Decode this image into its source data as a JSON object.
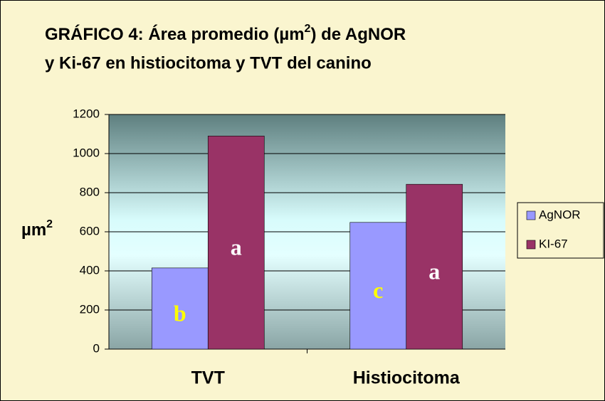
{
  "chart_data": {
    "type": "bar",
    "title": {
      "line1": [
        "GRÁFICO 4: Área promedio  (µm",
        "2",
        ") de AgNOR"
      ],
      "line2": "y Ki-67 en histiocitoma y TVT del canino"
    },
    "ylabel": [
      "µm",
      "2"
    ],
    "categories": [
      "TVT",
      "Histiocitoma"
    ],
    "series": [
      {
        "name": "AgNOR",
        "color": "#9999ff",
        "values": [
          415,
          648
        ],
        "letters": [
          "b",
          "c"
        ],
        "letter_color": "#ffff00"
      },
      {
        "name": "KI-67",
        "color": "#993366",
        "values": [
          1090,
          843
        ],
        "letters": [
          "a",
          "a"
        ],
        "letter_color": "#ffffff"
      }
    ],
    "ylim": [
      0,
      1200
    ],
    "yticks": [
      0,
      200,
      400,
      600,
      800,
      1000,
      1200
    ],
    "grid": true,
    "legend": "right"
  }
}
